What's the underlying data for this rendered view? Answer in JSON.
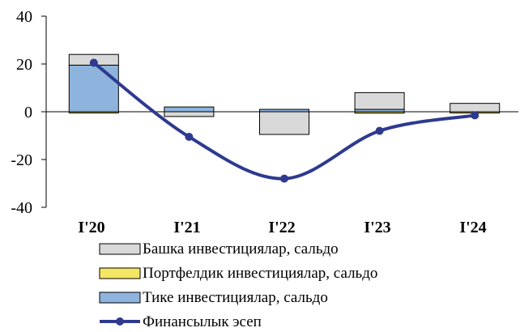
{
  "chart_data": {
    "type": "bar+line",
    "categories": [
      "I'20",
      "I'21",
      "I'22",
      "I'23",
      "I'24"
    ],
    "ylim": [
      -40,
      40
    ],
    "yticks": [
      "40",
      "20",
      "0",
      "-20",
      "-40"
    ],
    "stacking": "stacked bars, positives above zero and negatives below",
    "grid": false,
    "legend_position": "bottom",
    "series": [
      {
        "name": "Башка инвестициялар, сальдо",
        "kind": "bar",
        "color": "#d9d9d9",
        "values": [
          4.5,
          -2.0,
          -9.5,
          7.0,
          3.5
        ]
      },
      {
        "name": "Портфелдик инвестициялар, сальдо",
        "kind": "bar",
        "color": "#f5e663",
        "values": [
          -0.3,
          0.0,
          0.0,
          -0.6,
          -0.3
        ]
      },
      {
        "name": "Тике инвестициялар, сальдо",
        "kind": "bar",
        "color": "#8eb4de",
        "values": [
          19.5,
          2.0,
          1.0,
          1.0,
          0.0
        ]
      },
      {
        "name": "Финансылык эсеп",
        "kind": "line",
        "color": "#2e3a8f",
        "values": [
          20.5,
          -10.5,
          -28.0,
          -8.0,
          -1.5
        ]
      }
    ]
  }
}
